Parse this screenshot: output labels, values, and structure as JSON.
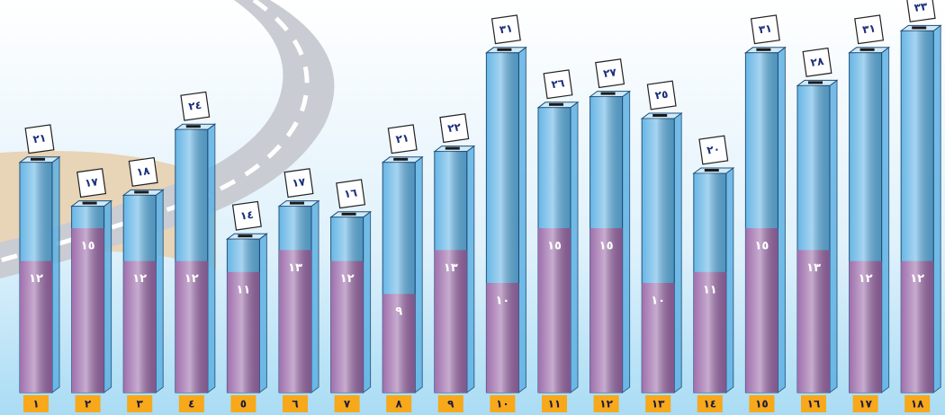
{
  "chart_data": {
    "type": "bar",
    "categories": [
      "١",
      "٢",
      "٣",
      "٤",
      "٥",
      "٦",
      "٧",
      "٨",
      "٩",
      "١٠",
      "١١",
      "١٢",
      "١٣",
      "١٤",
      "١٥",
      "١٦",
      "١٧",
      "١٨"
    ],
    "series": [
      {
        "color": "#5fb2e4",
        "values": [
          21,
          17,
          18,
          24,
          14,
          17,
          16,
          21,
          22,
          31,
          26,
          27,
          25,
          20,
          31,
          28,
          31,
          33
        ],
        "value_labels": [
          "٢١",
          "١٧",
          "١٨",
          "٢٤",
          "١٤",
          "١٧",
          "١٦",
          "٢١",
          "٢٢",
          "٣١",
          "٢٦",
          "٢٧",
          "٢٥",
          "٢٠",
          "٣١",
          "٢٨",
          "٣١",
          "٣٣"
        ]
      },
      {
        "color": "#9a68a8",
        "values": [
          12,
          15,
          12,
          12,
          11,
          13,
          12,
          9,
          13,
          10,
          15,
          15,
          10,
          11,
          15,
          13,
          12,
          12
        ],
        "value_labels": [
          "١٢",
          "١٥",
          "١٢",
          "١٢",
          "١١",
          "١٣",
          "١٢",
          "٩",
          "١٣",
          "١٠",
          "١٥",
          "١٥",
          "١٠",
          "١١",
          "١٥",
          "١٣",
          "١٢",
          "١٢"
        ]
      }
    ]
  }
}
